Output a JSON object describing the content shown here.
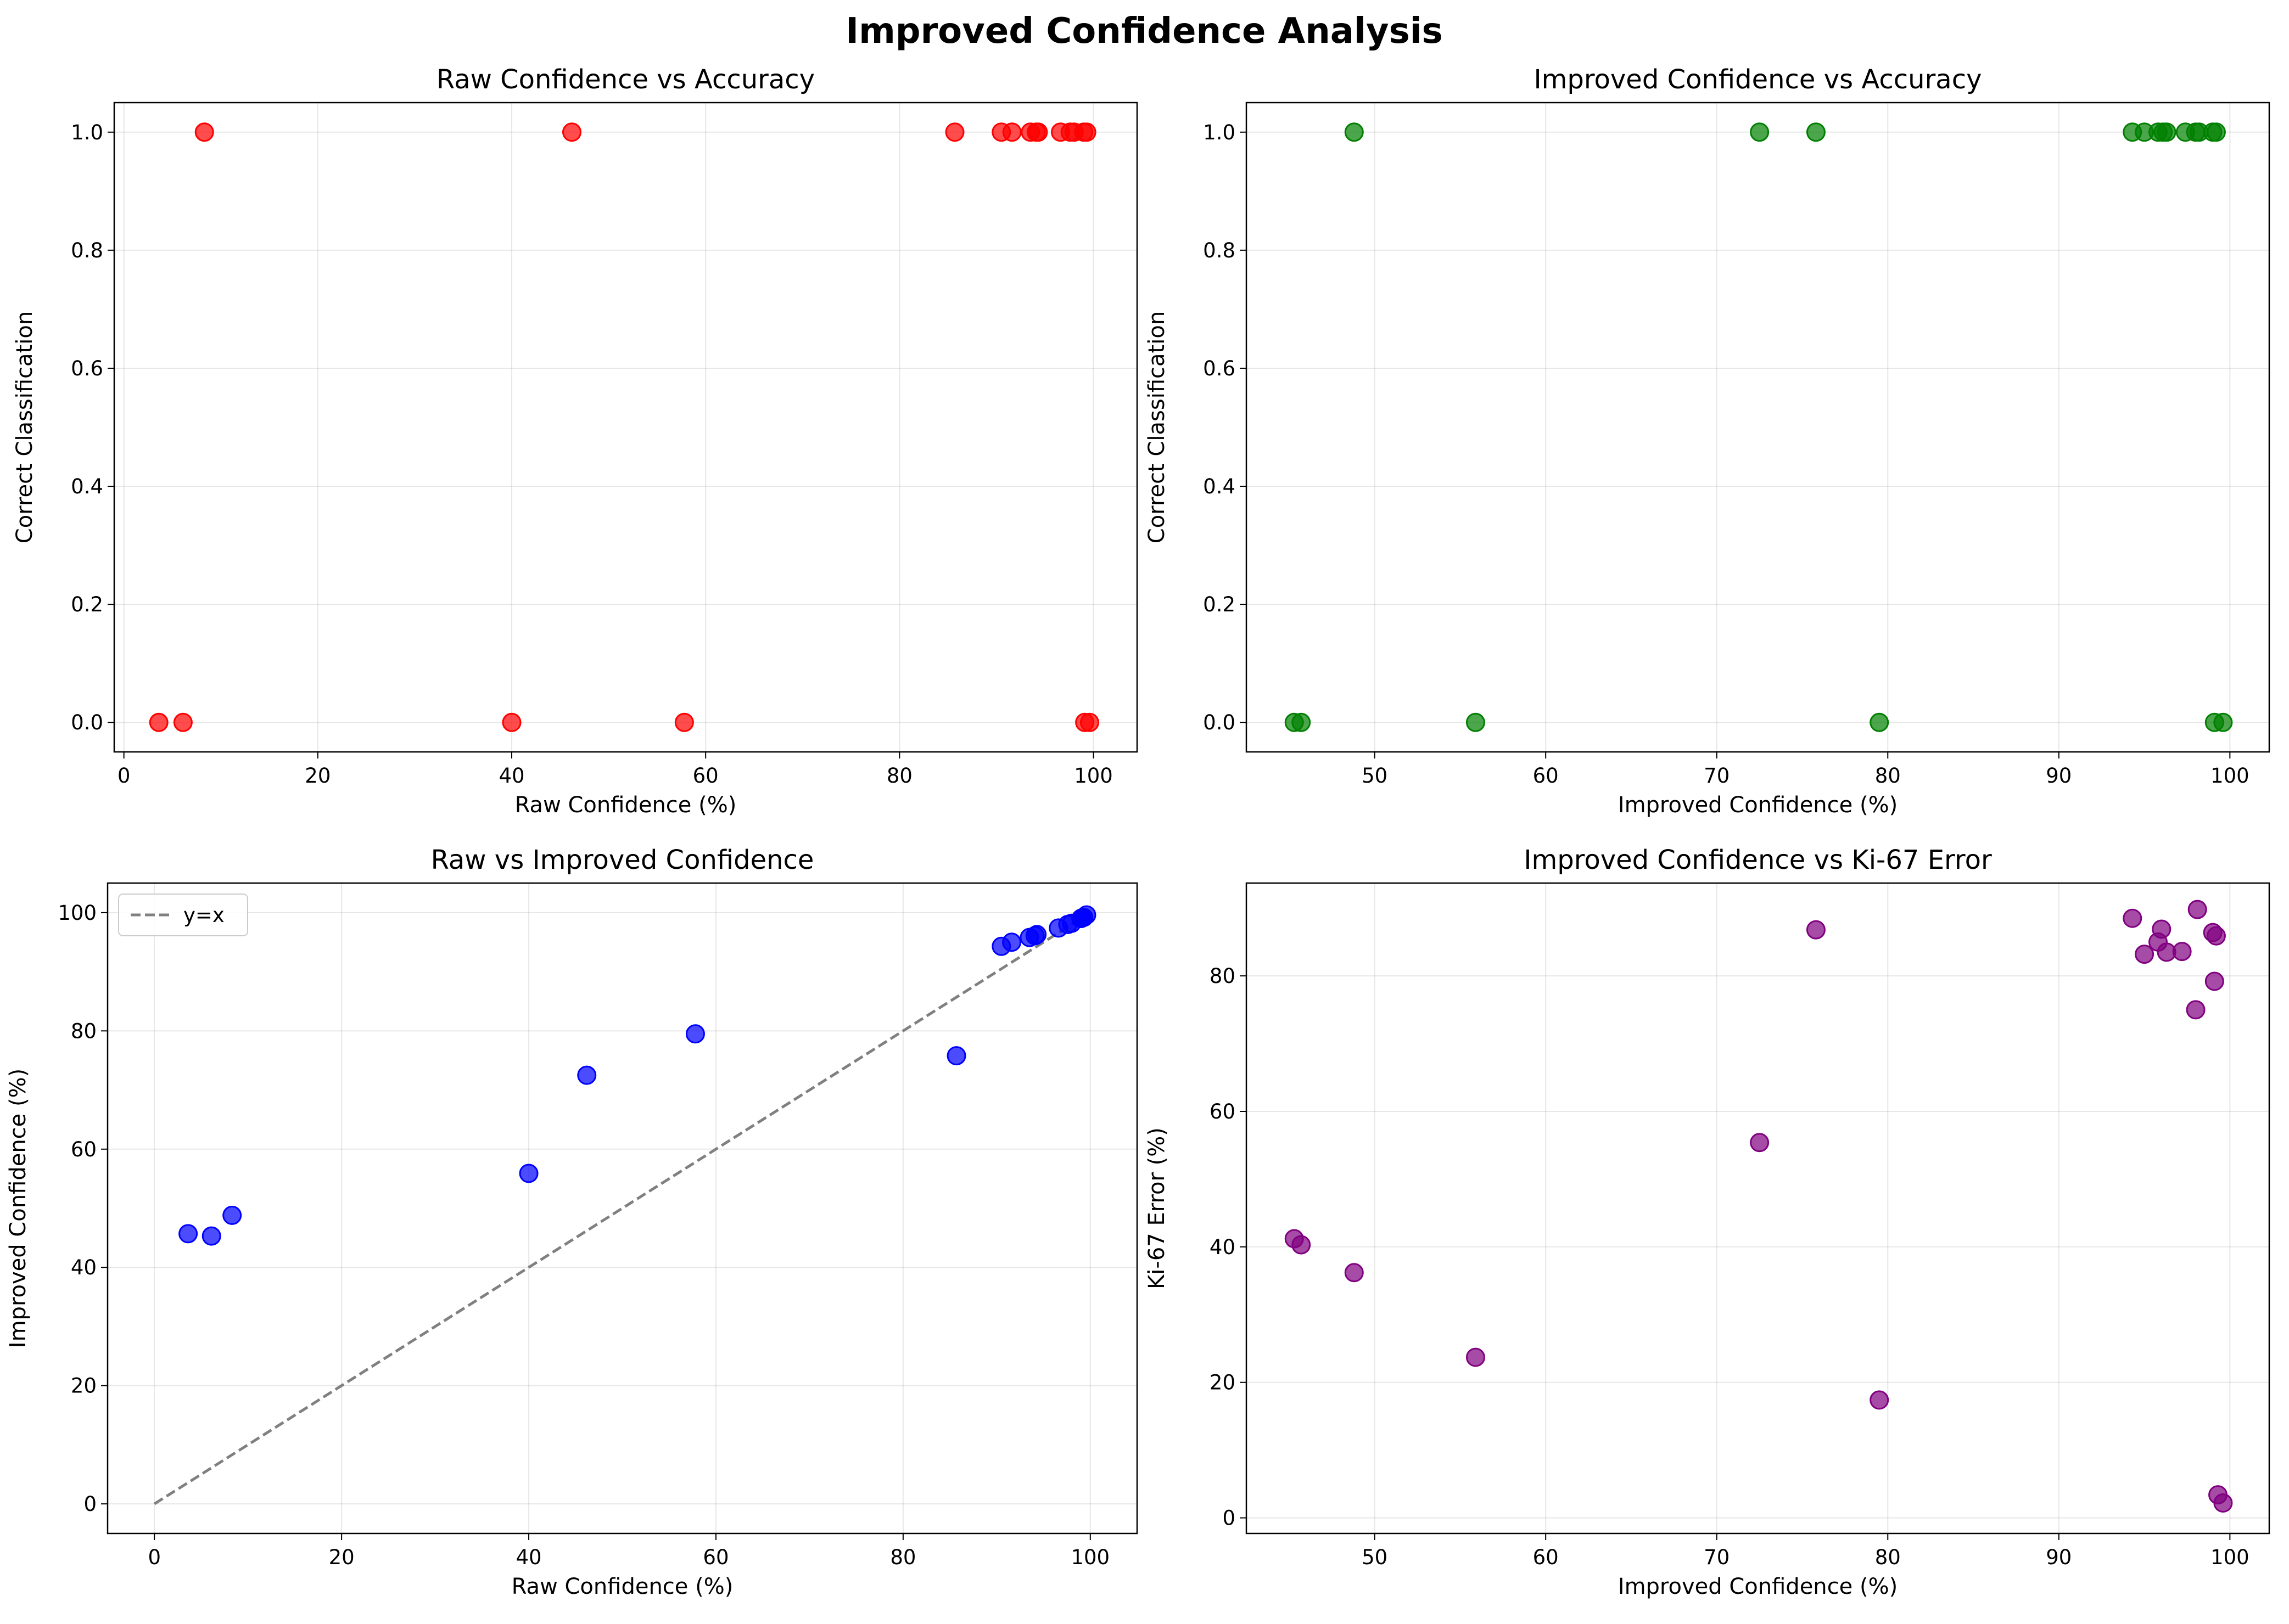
{
  "suptitle": "Improved Confidence Analysis",
  "chart_data": [
    {
      "type": "scatter",
      "title": "Raw Confidence vs Accuracy",
      "xlabel": "Raw Confidence (%)",
      "ylabel": "Correct Classification",
      "xlim": [
        -1,
        104.5
      ],
      "ylim": [
        -0.05,
        1.05
      ],
      "xticks": [
        0,
        20,
        40,
        60,
        80,
        100
      ],
      "yticks": [
        0.0,
        0.2,
        0.4,
        0.6,
        0.8,
        1.0
      ],
      "tick_decimals": 1,
      "grid": true,
      "series": [
        {
          "color": "#ff0000",
          "x": [
            8.3,
            46.2,
            85.7,
            90.5,
            91.6,
            93.5,
            94.1,
            94.3,
            96.6,
            97.6,
            98.0,
            99.0,
            99.3,
            3.6,
            6.1,
            40.0,
            57.8,
            99.1,
            99.6
          ],
          "y": [
            1,
            1,
            1,
            1,
            1,
            1,
            1,
            1,
            1,
            1,
            1,
            1,
            1,
            0,
            0,
            0,
            0,
            0,
            0
          ]
        }
      ]
    },
    {
      "type": "scatter",
      "title": "Improved Confidence vs Accuracy",
      "xlabel": "Improved Confidence (%)",
      "ylabel": "Correct Classification",
      "xlim": [
        42.5,
        102.3
      ],
      "ylim": [
        -0.05,
        1.05
      ],
      "xticks": [
        50,
        60,
        70,
        80,
        90,
        100
      ],
      "yticks": [
        0.0,
        0.2,
        0.4,
        0.6,
        0.8,
        1.0
      ],
      "tick_decimals": 1,
      "grid": true,
      "series": [
        {
          "color": "#008000",
          "x": [
            48.8,
            72.5,
            75.8,
            94.3,
            95.0,
            95.8,
            96.1,
            96.3,
            97.4,
            98.0,
            98.2,
            99.0,
            99.2,
            45.3,
            45.7,
            55.9,
            79.5,
            99.1,
            99.6
          ],
          "y": [
            1,
            1,
            1,
            1,
            1,
            1,
            1,
            1,
            1,
            1,
            1,
            1,
            1,
            0,
            0,
            0,
            0,
            0,
            0
          ]
        }
      ]
    },
    {
      "type": "scatter",
      "title": "Raw vs Improved Confidence",
      "xlabel": "Raw Confidence (%)",
      "ylabel": "Improved Confidence (%)",
      "xlim": [
        -5,
        105
      ],
      "ylim": [
        -5,
        105
      ],
      "xticks": [
        0,
        20,
        40,
        60,
        80,
        100
      ],
      "yticks": [
        0,
        20,
        40,
        60,
        80,
        100
      ],
      "tick_decimals": 0,
      "grid": true,
      "legend": "top-left",
      "reference_line": {
        "label": "y=x",
        "x": [
          0,
          100
        ],
        "y": [
          0,
          100
        ],
        "color": "#808080",
        "style": "dashed"
      },
      "series": [
        {
          "color": "#0000ff",
          "x": [
            3.6,
            6.1,
            8.3,
            40.0,
            46.2,
            57.8,
            85.7,
            90.5,
            91.6,
            93.5,
            94.1,
            94.3,
            96.6,
            97.6,
            98.0,
            99.0,
            99.1,
            99.3,
            99.6
          ],
          "y": [
            45.7,
            45.3,
            48.8,
            55.9,
            72.5,
            79.5,
            75.8,
            94.3,
            95.0,
            95.8,
            96.1,
            96.3,
            97.4,
            98.0,
            98.2,
            99.0,
            99.1,
            99.2,
            99.6
          ]
        }
      ]
    },
    {
      "type": "scatter",
      "title": "Improved Confidence vs Ki-67 Error",
      "xlabel": "Improved Confidence (%)",
      "ylabel": "Ki-67 Error (%)",
      "xlim": [
        42.5,
        102.3
      ],
      "ylim": [
        -2.3,
        93.7
      ],
      "xticks": [
        50,
        60,
        70,
        80,
        90,
        100
      ],
      "yticks": [
        0,
        20,
        40,
        60,
        80
      ],
      "tick_decimals": 0,
      "grid": true,
      "series": [
        {
          "color": "#800080",
          "x": [
            45.3,
            45.7,
            48.8,
            55.9,
            72.5,
            75.8,
            79.5,
            94.3,
            95.0,
            95.8,
            96.0,
            96.3,
            97.2,
            98.0,
            98.1,
            99.0,
            99.1,
            99.2,
            99.3,
            99.6
          ],
          "y": [
            41.2,
            40.3,
            36.2,
            23.7,
            55.4,
            86.8,
            17.4,
            88.5,
            83.2,
            85.0,
            86.9,
            83.5,
            83.6,
            75.0,
            89.8,
            86.4,
            79.2,
            85.9,
            3.4,
            2.2
          ]
        }
      ]
    }
  ]
}
